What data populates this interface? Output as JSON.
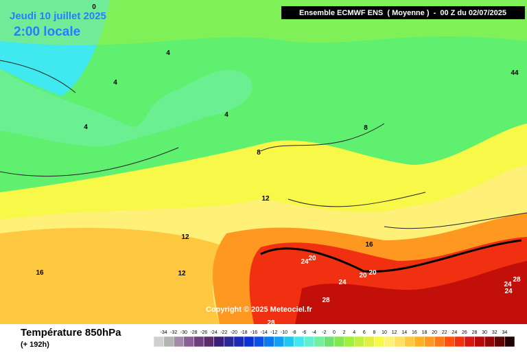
{
  "header": {
    "title": "Jeudi 10 juillet 2025",
    "subtitle": "2:00 locale",
    "run": "Ensemble ECMWF ENS  ( Moyenne )  -  00 Z du 02/07/2025"
  },
  "copyright": "Copyright © 2025 Meteociel.fr",
  "footer": {
    "title": "Température 850hPa",
    "lead": "(+ 192h)"
  },
  "legend": {
    "labels": [
      -34,
      -32,
      -30,
      -28,
      -26,
      -24,
      -22,
      -20,
      -18,
      -16,
      -14,
      -12,
      -10,
      -8,
      -6,
      -4,
      -2,
      0,
      2,
      4,
      6,
      8,
      10,
      12,
      14,
      16,
      18,
      20,
      22,
      24,
      26,
      28,
      30,
      32,
      34
    ],
    "colors": [
      "#cfcfcf",
      "#b4b4b4",
      "#a28aa8",
      "#8a5f93",
      "#6e3d7d",
      "#5a2a6a",
      "#3c1e7a",
      "#2a2a96",
      "#1a2ab4",
      "#0a32d2",
      "#0a50e6",
      "#0a78f0",
      "#10a0f0",
      "#20c8f0",
      "#40e8f0",
      "#60f0d0",
      "#70f0a0",
      "#70e070",
      "#80e850",
      "#a0f040",
      "#c0f040",
      "#e0f040",
      "#f8f848",
      "#fff078",
      "#ffe060",
      "#ffc840",
      "#ffb020",
      "#ff9820",
      "#ff7818",
      "#ff5010",
      "#f03010",
      "#d81810",
      "#b80808",
      "#900808",
      "#600404",
      "#200000"
    ]
  },
  "contour_labels": [
    0,
    4,
    4,
    4,
    4,
    44,
    8,
    8,
    12,
    12,
    12,
    16,
    16,
    24,
    20,
    24,
    20,
    20,
    28,
    28,
    24,
    28,
    24
  ]
}
